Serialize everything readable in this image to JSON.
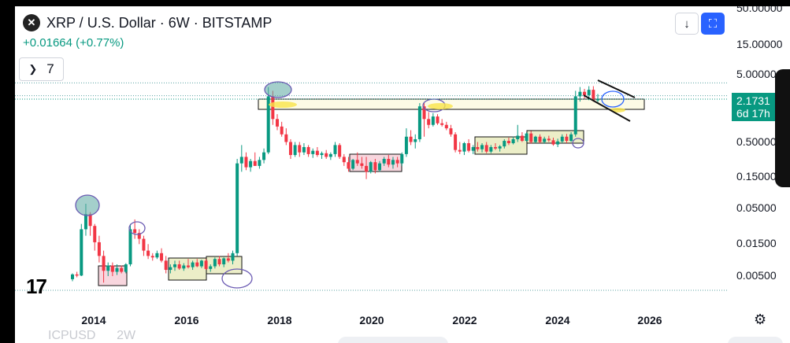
{
  "header": {
    "logo_icon": "xrp-logo-icon",
    "title": "XRP / U.S. Dollar · 6W · BITSTAMP",
    "change": "+0.01664 (+0.77%)"
  },
  "indicators": {
    "chevron_icon": "chevron-down-icon",
    "count": "7"
  },
  "toolbar": {
    "download_icon": "↓",
    "fullscreen_icon": "⛶"
  },
  "price_tag": {
    "price": "2.1731",
    "countdown": "6d 17h"
  },
  "tv_logo": "17",
  "settings_icon": "⚙",
  "bottom_bar": {
    "ticker": "ICPUSD",
    "interval": "2W"
  },
  "colors": {
    "up": "#089981",
    "down": "#f23645",
    "accent": "#2962ff"
  },
  "chart_data": {
    "type": "candlestick",
    "title": "XRP / U.S. Dollar · 6W · BITSTAMP",
    "scale": "log",
    "y_ticks": [
      "50.00000",
      "15.00000",
      "5.00000",
      "0.50000",
      "0.15000",
      "0.05000",
      "0.01500",
      "0.00500"
    ],
    "x_ticks": [
      "2014",
      "2016",
      "2018",
      "2020",
      "2022",
      "2024",
      "2026"
    ],
    "last_price": 2.1731,
    "candles": [
      [
        0.0045,
        0.0055,
        0.0042,
        0.0053
      ],
      [
        0.0053,
        0.0058,
        0.0048,
        0.0051
      ],
      [
        0.0051,
        0.03,
        0.005,
        0.025
      ],
      [
        0.025,
        0.06,
        0.02,
        0.042
      ],
      [
        0.042,
        0.045,
        0.02,
        0.028
      ],
      [
        0.028,
        0.03,
        0.012,
        0.016
      ],
      [
        0.016,
        0.02,
        0.008,
        0.01
      ],
      [
        0.01,
        0.012,
        0.004,
        0.006
      ],
      [
        0.006,
        0.008,
        0.005,
        0.0072
      ],
      [
        0.0072,
        0.008,
        0.005,
        0.0058
      ],
      [
        0.0058,
        0.0075,
        0.0052,
        0.0066
      ],
      [
        0.0066,
        0.0072,
        0.0055,
        0.0058
      ],
      [
        0.0058,
        0.0078,
        0.0055,
        0.0075
      ],
      [
        0.0075,
        0.03,
        0.007,
        0.025
      ],
      [
        0.025,
        0.035,
        0.018,
        0.022
      ],
      [
        0.022,
        0.025,
        0.015,
        0.018
      ],
      [
        0.018,
        0.02,
        0.01,
        0.012
      ],
      [
        0.012,
        0.015,
        0.009,
        0.01
      ],
      [
        0.01,
        0.011,
        0.0085,
        0.0095
      ],
      [
        0.0095,
        0.012,
        0.009,
        0.011
      ],
      [
        0.011,
        0.013,
        0.008,
        0.0085
      ],
      [
        0.0085,
        0.01,
        0.0055,
        0.0062
      ],
      [
        0.0062,
        0.0075,
        0.0055,
        0.0068
      ],
      [
        0.0068,
        0.0085,
        0.006,
        0.0075
      ],
      [
        0.0075,
        0.0085,
        0.0062,
        0.0065
      ],
      [
        0.0065,
        0.0078,
        0.006,
        0.0072
      ],
      [
        0.0072,
        0.009,
        0.0065,
        0.0068
      ],
      [
        0.0068,
        0.0085,
        0.0062,
        0.008
      ],
      [
        0.008,
        0.009,
        0.0068,
        0.007
      ],
      [
        0.007,
        0.0088,
        0.0066,
        0.0085
      ],
      [
        0.0085,
        0.009,
        0.0062,
        0.0064
      ],
      [
        0.0064,
        0.0075,
        0.0058,
        0.007
      ],
      [
        0.007,
        0.0095,
        0.0065,
        0.009
      ],
      [
        0.009,
        0.01,
        0.007,
        0.0075
      ],
      [
        0.0075,
        0.0095,
        0.0068,
        0.0092
      ],
      [
        0.0092,
        0.011,
        0.008,
        0.0085
      ],
      [
        0.0085,
        0.012,
        0.0075,
        0.011
      ],
      [
        0.011,
        0.28,
        0.01,
        0.24
      ],
      [
        0.24,
        0.45,
        0.18,
        0.3
      ],
      [
        0.3,
        0.35,
        0.19,
        0.21
      ],
      [
        0.21,
        0.28,
        0.18,
        0.26
      ],
      [
        0.26,
        0.35,
        0.22,
        0.22
      ],
      [
        0.22,
        0.3,
        0.2,
        0.27
      ],
      [
        0.27,
        0.4,
        0.24,
        0.35
      ],
      [
        0.35,
        3.3,
        0.33,
        2.4
      ],
      [
        2.4,
        2.9,
        0.9,
        1.1
      ],
      [
        1.1,
        1.3,
        0.75,
        0.85
      ],
      [
        0.85,
        1.0,
        0.6,
        0.65
      ],
      [
        0.65,
        0.8,
        0.45,
        0.5
      ],
      [
        0.5,
        0.55,
        0.28,
        0.32
      ],
      [
        0.32,
        0.5,
        0.3,
        0.45
      ],
      [
        0.45,
        0.5,
        0.3,
        0.35
      ],
      [
        0.35,
        0.48,
        0.32,
        0.42
      ],
      [
        0.42,
        0.45,
        0.3,
        0.33
      ],
      [
        0.33,
        0.4,
        0.29,
        0.37
      ],
      [
        0.37,
        0.42,
        0.3,
        0.32
      ],
      [
        0.32,
        0.36,
        0.28,
        0.34
      ],
      [
        0.34,
        0.38,
        0.28,
        0.3
      ],
      [
        0.3,
        0.35,
        0.27,
        0.33
      ],
      [
        0.33,
        0.5,
        0.3,
        0.45
      ],
      [
        0.45,
        0.48,
        0.28,
        0.3
      ],
      [
        0.3,
        0.33,
        0.22,
        0.25
      ],
      [
        0.25,
        0.3,
        0.18,
        0.2
      ],
      [
        0.2,
        0.28,
        0.19,
        0.27
      ],
      [
        0.27,
        0.35,
        0.22,
        0.24
      ],
      [
        0.24,
        0.3,
        0.2,
        0.22
      ],
      [
        0.22,
        0.3,
        0.14,
        0.18
      ],
      [
        0.18,
        0.26,
        0.17,
        0.25
      ],
      [
        0.25,
        0.28,
        0.17,
        0.19
      ],
      [
        0.19,
        0.26,
        0.18,
        0.24
      ],
      [
        0.24,
        0.3,
        0.22,
        0.28
      ],
      [
        0.28,
        0.32,
        0.21,
        0.23
      ],
      [
        0.23,
        0.3,
        0.2,
        0.27
      ],
      [
        0.27,
        0.3,
        0.21,
        0.24
      ],
      [
        0.24,
        0.35,
        0.22,
        0.33
      ],
      [
        0.33,
        0.8,
        0.3,
        0.6
      ],
      [
        0.6,
        0.75,
        0.45,
        0.5
      ],
      [
        0.5,
        0.65,
        0.4,
        0.55
      ],
      [
        0.55,
        1.9,
        0.5,
        1.7
      ],
      [
        1.7,
        1.9,
        0.6,
        1.1
      ],
      [
        1.1,
        1.4,
        0.8,
        0.9
      ],
      [
        0.9,
        1.35,
        0.85,
        1.2
      ],
      [
        1.2,
        1.3,
        0.9,
        0.95
      ],
      [
        0.95,
        1.1,
        0.85,
        0.9
      ],
      [
        0.9,
        1.0,
        0.75,
        0.8
      ],
      [
        0.8,
        0.9,
        0.6,
        0.65
      ],
      [
        0.65,
        0.7,
        0.35,
        0.38
      ],
      [
        0.38,
        0.5,
        0.33,
        0.36
      ],
      [
        0.36,
        0.5,
        0.32,
        0.48
      ],
      [
        0.48,
        0.55,
        0.35,
        0.37
      ],
      [
        0.37,
        0.45,
        0.33,
        0.42
      ],
      [
        0.42,
        0.5,
        0.36,
        0.39
      ],
      [
        0.39,
        0.48,
        0.35,
        0.45
      ],
      [
        0.45,
        0.5,
        0.34,
        0.36
      ],
      [
        0.36,
        0.45,
        0.34,
        0.42
      ],
      [
        0.42,
        0.48,
        0.38,
        0.4
      ],
      [
        0.4,
        0.45,
        0.36,
        0.43
      ],
      [
        0.43,
        0.55,
        0.4,
        0.52
      ],
      [
        0.52,
        0.58,
        0.45,
        0.48
      ],
      [
        0.48,
        0.6,
        0.46,
        0.55
      ],
      [
        0.55,
        0.9,
        0.5,
        0.62
      ],
      [
        0.62,
        0.7,
        0.5,
        0.52
      ],
      [
        0.52,
        0.7,
        0.5,
        0.67
      ],
      [
        0.67,
        0.73,
        0.47,
        0.5
      ],
      [
        0.5,
        0.62,
        0.48,
        0.6
      ],
      [
        0.6,
        0.65,
        0.48,
        0.5
      ],
      [
        0.5,
        0.6,
        0.47,
        0.56
      ],
      [
        0.56,
        0.62,
        0.5,
        0.53
      ],
      [
        0.53,
        0.58,
        0.44,
        0.46
      ],
      [
        0.46,
        0.56,
        0.42,
        0.51
      ],
      [
        0.51,
        0.65,
        0.48,
        0.6
      ],
      [
        0.6,
        0.66,
        0.48,
        0.52
      ],
      [
        0.52,
        0.7,
        0.5,
        0.65
      ],
      [
        0.65,
        2.9,
        0.6,
        2.4
      ],
      [
        2.4,
        3.3,
        2.0,
        2.8
      ],
      [
        2.8,
        3.1,
        2.2,
        2.5
      ],
      [
        2.5,
        3.4,
        2.1,
        3.0
      ],
      [
        3.0,
        3.4,
        2.0,
        2.1
      ],
      [
        2.1,
        2.6,
        1.9,
        2.1731
      ]
    ],
    "annotations": {
      "resistance_zone": [
        1.75,
        2.95
      ],
      "dotted_levels": [
        3.8,
        2.45,
        0.0035
      ]
    }
  }
}
